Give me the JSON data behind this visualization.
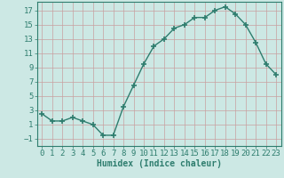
{
  "x": [
    0,
    1,
    2,
    3,
    4,
    5,
    6,
    7,
    8,
    9,
    10,
    11,
    12,
    13,
    14,
    15,
    16,
    17,
    18,
    19,
    20,
    21,
    22,
    23
  ],
  "y": [
    2.5,
    1.5,
    1.5,
    2.0,
    1.5,
    1.0,
    -0.5,
    -0.5,
    3.5,
    6.5,
    9.5,
    12.0,
    13.0,
    14.5,
    15.0,
    16.0,
    16.0,
    17.0,
    17.5,
    16.5,
    15.0,
    12.5,
    9.5,
    8.0
  ],
  "line_color": "#2e7d6e",
  "bg_color": "#cce8e4",
  "grid_color": "#b0d8d4",
  "xlabel": "Humidex (Indice chaleur)",
  "xlim": [
    -0.5,
    23.5
  ],
  "ylim": [
    -2.0,
    18.2
  ],
  "yticks": [
    -1,
    1,
    3,
    5,
    7,
    9,
    11,
    13,
    15,
    17
  ],
  "xticks": [
    0,
    1,
    2,
    3,
    4,
    5,
    6,
    7,
    8,
    9,
    10,
    11,
    12,
    13,
    14,
    15,
    16,
    17,
    18,
    19,
    20,
    21,
    22,
    23
  ],
  "xlabel_fontsize": 7,
  "tick_fontsize": 6.5,
  "marker": "+",
  "marker_size": 5,
  "line_width": 1.0
}
